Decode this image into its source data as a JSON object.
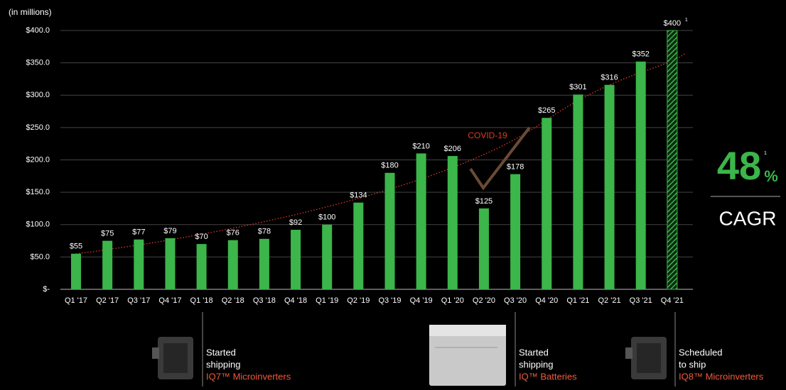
{
  "chart_data": {
    "type": "bar",
    "unit_label": "(in millions)",
    "categories": [
      "Q1 '17",
      "Q2 '17",
      "Q3 '17",
      "Q4 '17",
      "Q1 '18",
      "Q2 '18",
      "Q3 '18",
      "Q4 '18",
      "Q1 '19",
      "Q2 '19",
      "Q3 '19",
      "Q4 '19",
      "Q1 '20",
      "Q2 '20",
      "Q3 '20",
      "Q4 '20",
      "Q1 '21",
      "Q2 '21",
      "Q3 '21",
      "Q4 '21"
    ],
    "values": [
      55,
      75,
      77,
      79,
      70,
      76,
      78,
      92,
      100,
      134,
      180,
      210,
      206,
      125,
      178,
      265,
      301,
      316,
      352,
      400
    ],
    "value_labels": [
      "$55",
      "$75",
      "$77",
      "$79",
      "$70",
      "$76",
      "$78",
      "$92",
      "$100",
      "$134",
      "$180",
      "$210",
      "$206",
      "$125",
      "$178",
      "$265",
      "$301",
      "$316",
      "$352",
      "$400"
    ],
    "color": "#3cb54a",
    "hatched_index": 19,
    "ylim": [
      0,
      400
    ],
    "yticks": [
      {
        "value": 0,
        "label": "$-"
      },
      {
        "value": 50,
        "label": "$50.0"
      },
      {
        "value": 100,
        "label": "$100.0"
      },
      {
        "value": 150,
        "label": "$150.0"
      },
      {
        "value": 200,
        "label": "$200.0"
      },
      {
        "value": 250,
        "label": "$250.0"
      },
      {
        "value": 300,
        "label": "$300.0"
      },
      {
        "value": 350,
        "label": "$350.0"
      },
      {
        "value": 400,
        "label": "$400.0"
      }
    ],
    "grid": true,
    "annotations": {
      "event": "COVID-19",
      "value_footnote": "1"
    },
    "cagr": {
      "value": 48,
      "unit": "%",
      "footnote": "1",
      "label": "CAGR"
    },
    "milestones": [
      {
        "status": [
          "Started",
          "shipping"
        ],
        "product": "IQ7™ Microinverters"
      },
      {
        "status": [
          "Started",
          "shipping"
        ],
        "product": "IQ™ Batteries"
      },
      {
        "status": [
          "Scheduled",
          "to ship"
        ],
        "product": "IQ8™ Microinverters"
      }
    ]
  }
}
